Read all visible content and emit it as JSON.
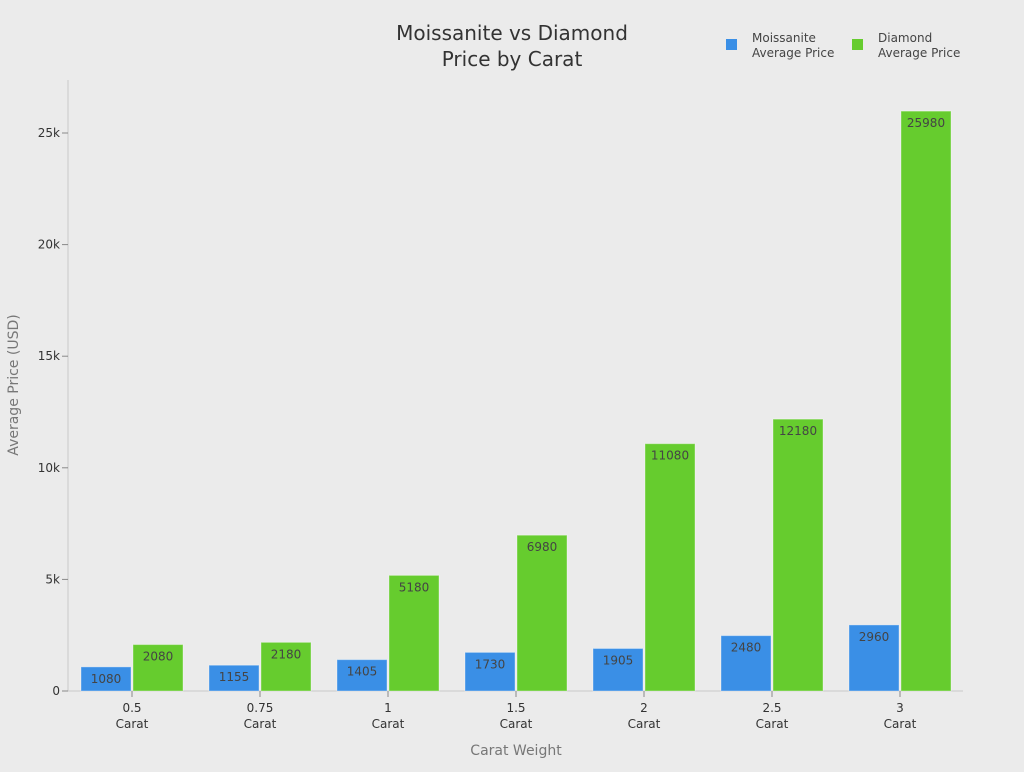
{
  "chart_data": {
    "type": "bar",
    "title": [
      "Moissanite vs Diamond",
      "Price by Carat"
    ],
    "xlabel": "Carat Weight",
    "ylabel": "Average Price (USD)",
    "categories": [
      [
        "0.5",
        "Carat"
      ],
      [
        "0.75",
        "Carat"
      ],
      [
        "1",
        "Carat"
      ],
      [
        "1.5",
        "Carat"
      ],
      [
        "2",
        "Carat"
      ],
      [
        "2.5",
        "Carat"
      ],
      [
        "3",
        "Carat"
      ]
    ],
    "series": [
      {
        "name": [
          "Moissanite",
          "Average Price"
        ],
        "color": "#3a8fe6",
        "values": [
          1080,
          1155,
          1405,
          1730,
          1905,
          2480,
          2960
        ]
      },
      {
        "name": [
          "Diamond",
          "Average Price"
        ],
        "color": "#66cc2e",
        "values": [
          2080,
          2180,
          5180,
          6980,
          11080,
          12180,
          25980
        ]
      }
    ],
    "ylim": [
      0,
      27400
    ],
    "yticks": [
      0,
      5000,
      10000,
      15000,
      20000,
      25000
    ],
    "ytick_labels": [
      "0",
      "5k",
      "10k",
      "15k",
      "20k",
      "25k"
    ],
    "grid": false,
    "legend": "top-right",
    "data_labels": true
  }
}
